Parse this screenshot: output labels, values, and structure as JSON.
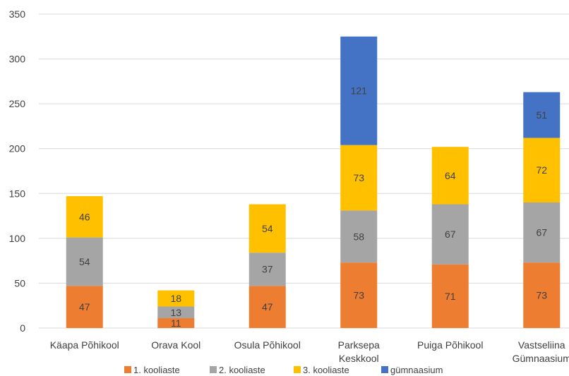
{
  "chart_data": {
    "type": "bar",
    "stacked": true,
    "categories": [
      [
        "Käapa Põhikool"
      ],
      [
        "Orava Kool"
      ],
      [
        "Osula Põhikool"
      ],
      [
        "Parksepa",
        "Keskkool"
      ],
      [
        "Puiga Põhikool"
      ],
      [
        "Vastseliina",
        "Gümnaasium"
      ]
    ],
    "series": [
      {
        "name": "1. kooliaste",
        "color": "#ed7d31",
        "values": [
          47,
          11,
          47,
          73,
          71,
          73
        ]
      },
      {
        "name": "2. kooliaste",
        "color": "#a5a5a5",
        "values": [
          54,
          13,
          37,
          58,
          67,
          67
        ]
      },
      {
        "name": "3. kooliaste",
        "color": "#ffc000",
        "values": [
          46,
          18,
          54,
          73,
          64,
          72
        ]
      },
      {
        "name": "gümnaasium",
        "color": "#4472c4",
        "values": [
          null,
          null,
          null,
          121,
          null,
          51
        ]
      }
    ],
    "ylim": [
      0,
      350
    ],
    "yticks": [
      0,
      50,
      100,
      150,
      200,
      250,
      300,
      350
    ],
    "grid": true,
    "legend_position": "bottom"
  }
}
